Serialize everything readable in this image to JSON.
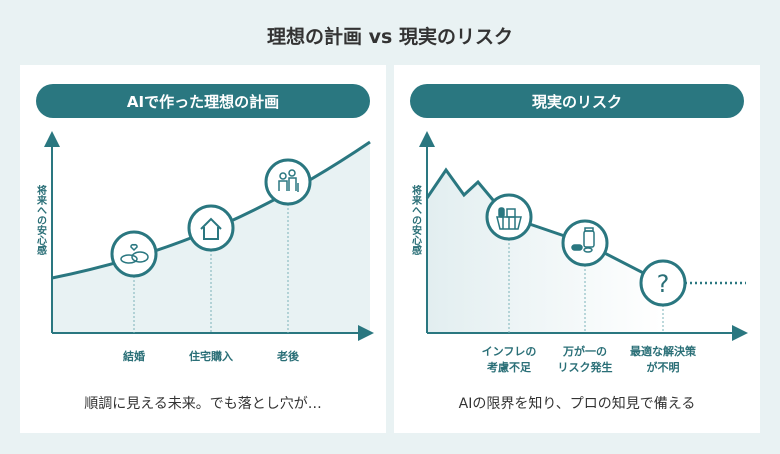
{
  "title": "理想の計画 vs 現実のリスク",
  "colors": {
    "accent": "#2a7780",
    "fill": "#e8f2f3",
    "background": "#e9f2f3"
  },
  "left": {
    "header": "AIで作った理想の計画",
    "y_axis_label": "将来への安心感",
    "events": [
      {
        "label": "結婚",
        "icon": "wedding-rings-icon"
      },
      {
        "label": "住宅購入",
        "icon": "house-icon"
      },
      {
        "label": "老後",
        "icon": "elderly-couple-icon"
      }
    ],
    "caption": "順調に見える未来。でも落とし穴が…"
  },
  "right": {
    "header": "現実のリスク",
    "y_axis_label": "将来への安心感",
    "events": [
      {
        "label_line1": "インフレの",
        "label_line2": "考慮不足",
        "icon": "shopping-basket-icon"
      },
      {
        "label_line1": "万が一の",
        "label_line2": "リスク発生",
        "icon": "medicine-icon"
      },
      {
        "label_line1": "最適な解決策",
        "label_line2": "が不明",
        "icon": "question-mark-icon"
      }
    ],
    "question_mark": "?",
    "caption": "AIの限界を知り、プロの知見で備える"
  }
}
